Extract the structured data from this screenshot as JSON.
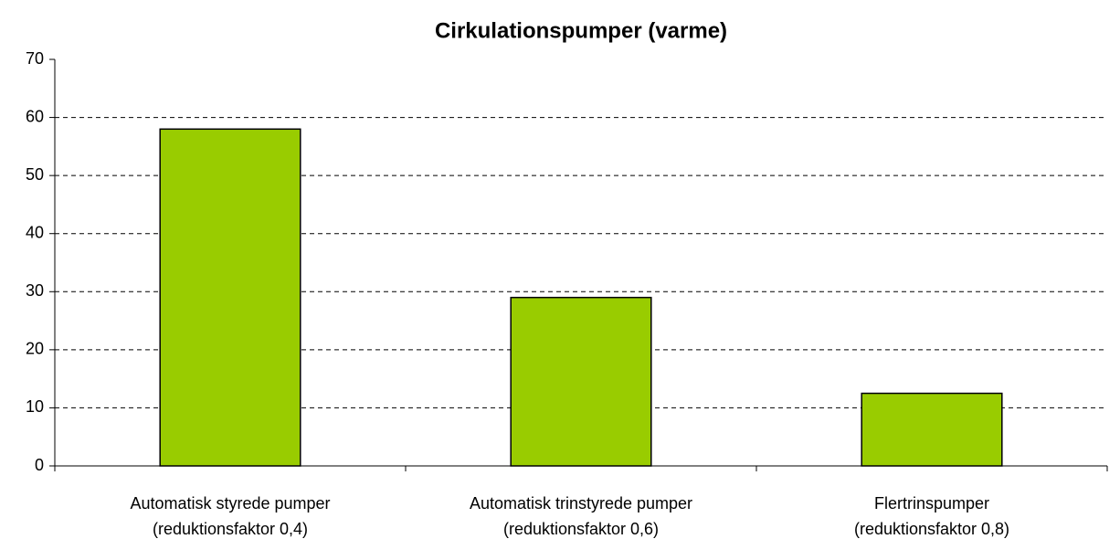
{
  "chart_data": {
    "type": "bar",
    "title": "Cirkulationspumper (varme)",
    "categories": [
      [
        "Automatisk styrede pumper",
        "(reduktionsfaktor 0,4)"
      ],
      [
        "Automatisk trinstyrede pumper",
        "(reduktionsfaktor 0,6)"
      ],
      [
        "Flertrinspumper",
        "(reduktionsfaktor 0,8)"
      ]
    ],
    "values": [
      58,
      29,
      12.5
    ],
    "color": "#99cc00",
    "ylim": [
      0,
      70
    ],
    "yticks": [
      0,
      10,
      20,
      30,
      40,
      50,
      60,
      70
    ],
    "grid": true
  }
}
